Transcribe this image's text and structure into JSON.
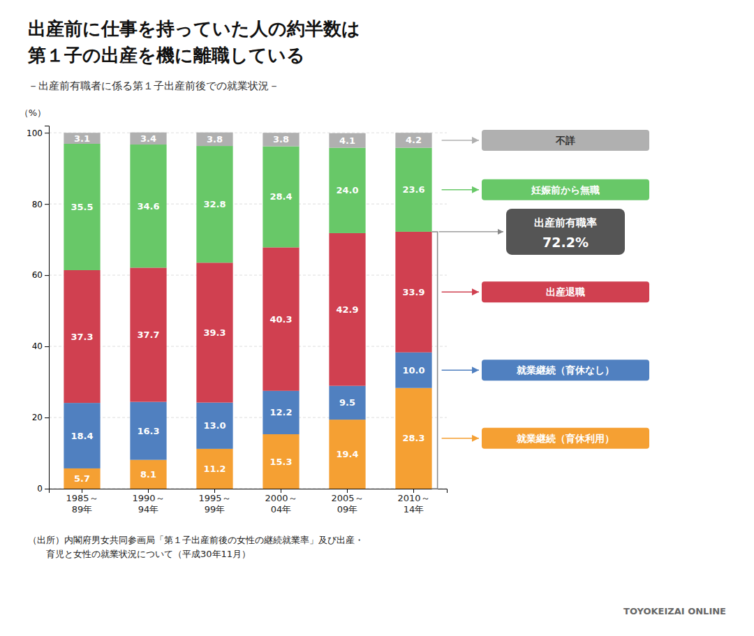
{
  "chart_data": {
    "type": "bar",
    "stacked": true,
    "title": "出産前に仕事を持っていた人の約半数は\n第１子の出産を機に離職している",
    "subtitle": "－出産前有職者に係る第１子出産前後での就業状況－",
    "ylabel": "（%）",
    "categories": [
      "1985～\n89年",
      "1990～\n94年",
      "1995～\n99年",
      "2000～\n04年",
      "2005～\n09年",
      "2010～\n14年"
    ],
    "series": [
      {
        "name": "就業継続（育休利用）",
        "color": "#F5A033",
        "values": [
          5.7,
          8.1,
          11.2,
          15.3,
          19.4,
          28.3
        ]
      },
      {
        "name": "就業継続（育休なし）",
        "color": "#5080C0",
        "values": [
          18.4,
          16.3,
          13.0,
          12.2,
          9.5,
          10.0
        ],
        "value_labels": [
          "18.4",
          "16.3",
          "13.0",
          "12.2",
          "9.5",
          "10.0"
        ]
      },
      {
        "name": "出産退職",
        "color": "#D04050",
        "values": [
          37.3,
          37.7,
          39.3,
          40.3,
          42.9,
          33.9
        ]
      },
      {
        "name": "妊娠前から無職",
        "color": "#68C868",
        "values": [
          35.5,
          34.6,
          32.8,
          28.4,
          24.0,
          23.6
        ],
        "value_labels": [
          "35.5",
          "34.6",
          "32.8",
          "28.4",
          "24.0",
          "23.6"
        ]
      },
      {
        "name": "不詳",
        "color": "#B0B0B0",
        "values": [
          3.1,
          3.4,
          3.8,
          3.8,
          4.1,
          4.2
        ]
      }
    ],
    "ylim": [
      0,
      102
    ],
    "yticks": [
      0,
      20,
      40,
      60,
      80,
      100
    ],
    "grid": true,
    "data_labels": true,
    "legend": "right",
    "annotations": [
      {
        "text": "出産前有職率",
        "value": 72.2,
        "value_label": "72.2%"
      }
    ],
    "source": "（出所）内閣府男女共同参画局「第１子出産前後の女性の継続就業率」及び出産・\n　　育児と女性の就業状況について（平成30年11月）",
    "footer": "TOYOKEIZAI ONLINE"
  }
}
